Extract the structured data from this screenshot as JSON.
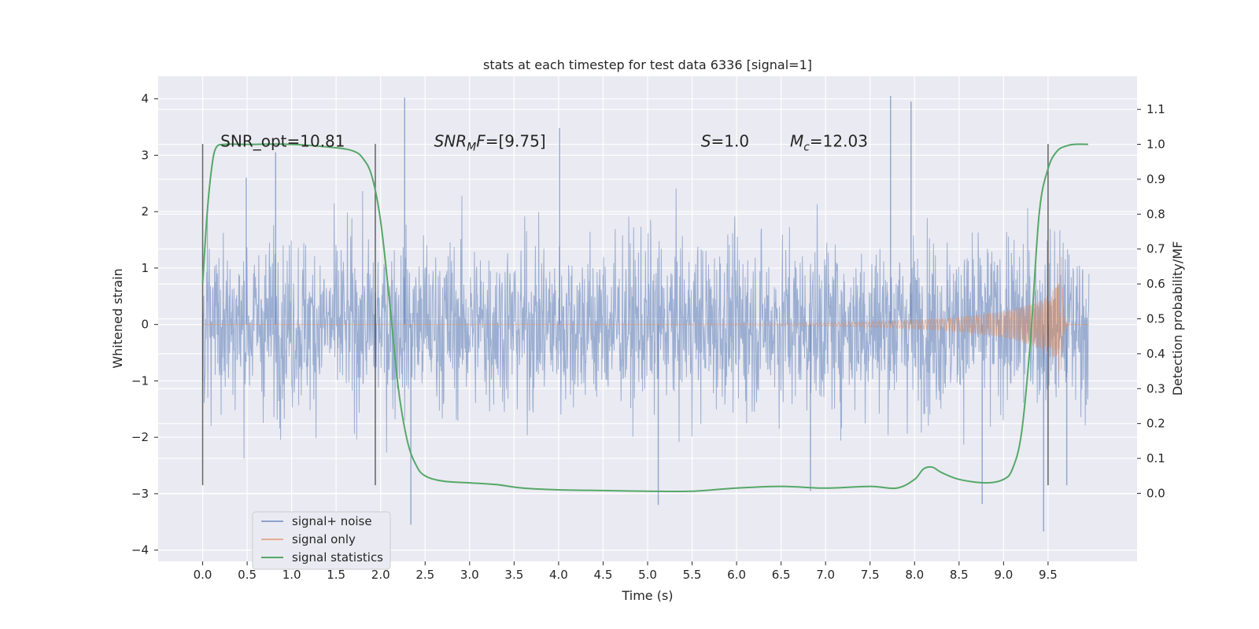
{
  "chart_data": {
    "type": "line",
    "title": "stats at each timestep for test data 6336 [signal=1]",
    "xlabel": "Time (s)",
    "ylabel_left": "Whitened strain",
    "ylabel_right": "Detection probability/MF",
    "xlim": [
      -0.5,
      10.5
    ],
    "ylim_left": [
      -4.2,
      4.4
    ],
    "ylim_right": [
      -0.195,
      1.195
    ],
    "xticks": [
      "0.0",
      "0.5",
      "1.0",
      "1.5",
      "2.0",
      "2.5",
      "3.0",
      "3.5",
      "4.0",
      "4.5",
      "5.0",
      "5.5",
      "6.0",
      "6.5",
      "7.0",
      "7.5",
      "8.0",
      "8.5",
      "9.0",
      "9.5"
    ],
    "yticks_left": [
      "4",
      "3",
      "2",
      "1",
      "0",
      "−1",
      "−2",
      "−3",
      "−4"
    ],
    "yticks_right": [
      "1.1",
      "1.0",
      "0.9",
      "0.8",
      "0.7",
      "0.6",
      "0.5",
      "0.4",
      "0.3",
      "0.2",
      "0.1",
      "0.0"
    ],
    "grid": true,
    "legend_position": "lower-left",
    "annotations": [
      {
        "text": "SNR_opt=10.81",
        "x": 0.2,
        "y": 3.25
      },
      {
        "text": "SNR",
        "sub": "M",
        "tail": "F=[9.75]",
        "italic": true,
        "x": 2.6,
        "y": 3.25
      },
      {
        "text": "S",
        "tail": "=1.0",
        "italic": true,
        "x": 5.6,
        "y": 3.25
      },
      {
        "text": "M",
        "sub": "c",
        "tail": "=12.03",
        "italic": true,
        "x": 6.6,
        "y": 3.25
      }
    ],
    "vertical_markers": [
      {
        "x": 0.0,
        "y_range": [
          -2.85,
          3.2
        ]
      },
      {
        "x": 1.94,
        "y_range": [
          -2.85,
          3.2
        ]
      },
      {
        "x": 9.5,
        "y_range": [
          -2.85,
          3.2
        ]
      }
    ],
    "series": [
      {
        "name": "signal+ noise",
        "axis": "left",
        "color": "#4c72b0",
        "alpha": 0.5,
        "x_range": [
          0.0,
          9.96
        ],
        "typical_amplitude": 1.4,
        "peak_values": [
          [
            0.49,
            2.6
          ],
          [
            0.82,
            3.05
          ],
          [
            2.27,
            4.02
          ],
          [
            2.34,
            -3.55
          ],
          [
            4.01,
            3.48
          ],
          [
            5.12,
            -3.2
          ],
          [
            6.83,
            -2.95
          ],
          [
            7.73,
            4.05
          ],
          [
            7.96,
            3.95
          ],
          [
            8.76,
            -3.18
          ],
          [
            9.45,
            -3.67
          ],
          [
            9.71,
            -2.85
          ]
        ]
      },
      {
        "name": "signal only",
        "axis": "left",
        "color": "#dd8452",
        "alpha": 0.5,
        "description": "chirp with amplitude growing toward merger",
        "merger_time": 9.66,
        "peak_amplitude": 1.5
      },
      {
        "name": "signal statistics",
        "axis": "right",
        "color": "#55a868",
        "x": [
          0.0,
          0.05,
          0.1,
          0.15,
          0.25,
          0.5,
          1.0,
          1.5,
          1.7,
          1.8,
          1.9,
          2.0,
          2.1,
          2.2,
          2.3,
          2.4,
          2.5,
          2.7,
          3.0,
          3.3,
          3.6,
          4.0,
          4.5,
          5.0,
          5.5,
          6.0,
          6.5,
          7.0,
          7.5,
          7.8,
          8.0,
          8.1,
          8.2,
          8.3,
          8.5,
          8.8,
          9.0,
          9.1,
          9.2,
          9.3,
          9.4,
          9.5,
          9.6,
          9.7,
          9.8,
          9.95
        ],
        "y": [
          0.6,
          0.8,
          0.93,
          0.99,
          1.0,
          1.0,
          1.0,
          0.99,
          0.98,
          0.96,
          0.91,
          0.78,
          0.55,
          0.3,
          0.15,
          0.08,
          0.05,
          0.035,
          0.03,
          0.025,
          0.015,
          0.01,
          0.008,
          0.006,
          0.006,
          0.015,
          0.02,
          0.015,
          0.02,
          0.015,
          0.04,
          0.07,
          0.075,
          0.06,
          0.04,
          0.03,
          0.04,
          0.07,
          0.17,
          0.43,
          0.8,
          0.93,
          0.98,
          0.995,
          1.0,
          1.0
        ]
      }
    ]
  }
}
